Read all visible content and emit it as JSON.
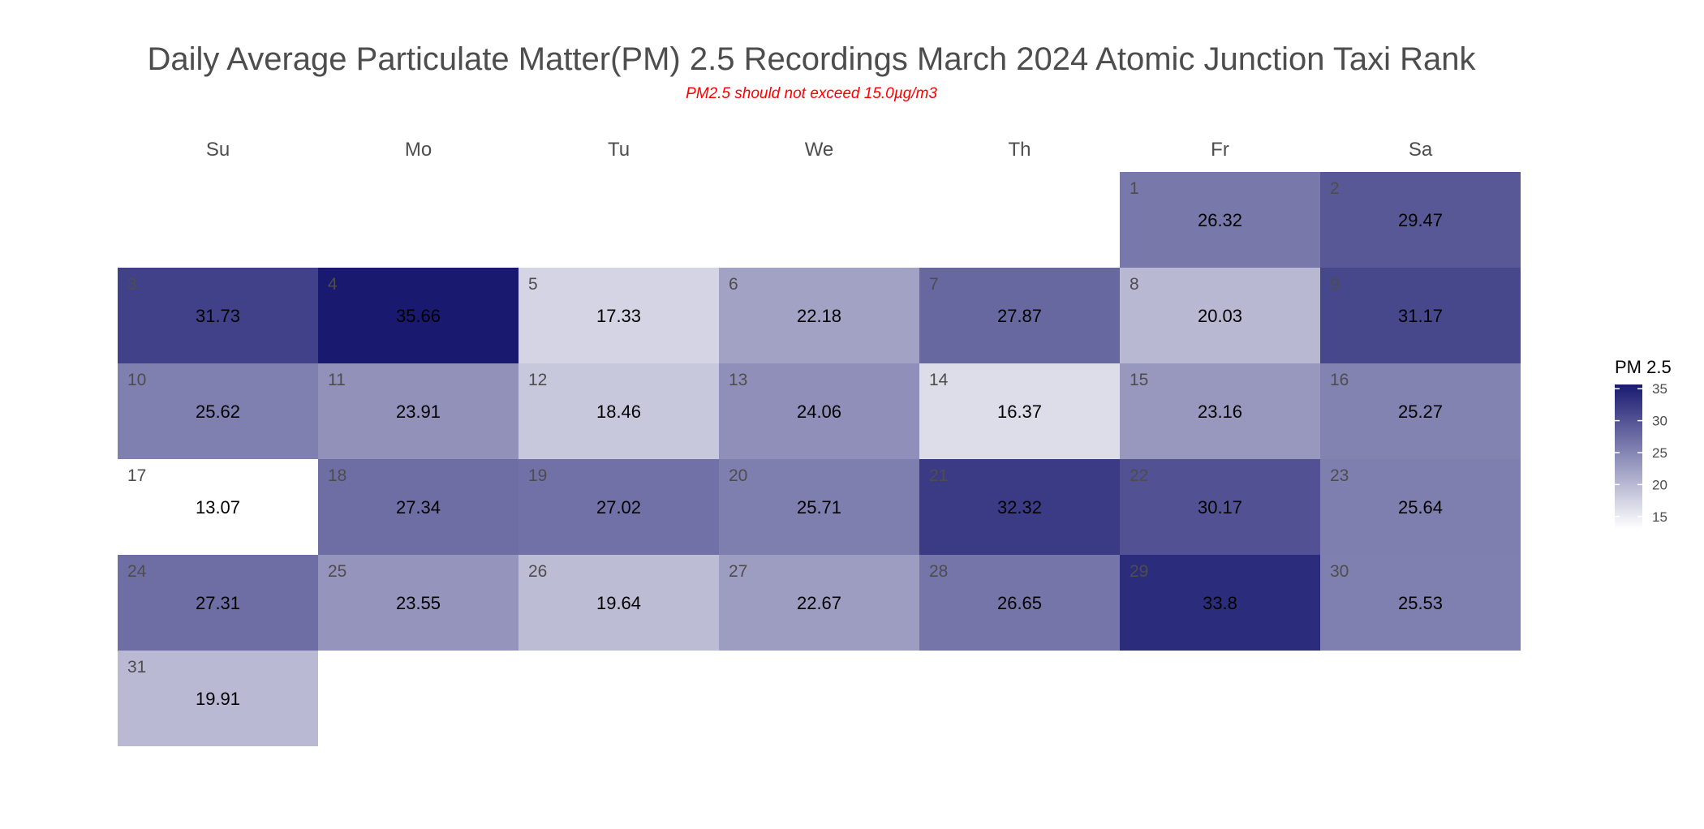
{
  "chart_data": {
    "type": "heatmap",
    "title": "Daily Average Particulate Matter(PM) 2.5 Recordings March 2024 Atomic Junction Taxi Rank",
    "subtitle": "PM2.5 should not exceed 15.0µg/m3",
    "weekdays": [
      "Su",
      "Mo",
      "Tu",
      "We",
      "Th",
      "Fr",
      "Sa"
    ],
    "first_weekday_index": 5,
    "days": [
      {
        "date": 1,
        "value": 26.32
      },
      {
        "date": 2,
        "value": 29.47
      },
      {
        "date": 3,
        "value": 31.73
      },
      {
        "date": 4,
        "value": 35.66
      },
      {
        "date": 5,
        "value": 17.33
      },
      {
        "date": 6,
        "value": 22.18
      },
      {
        "date": 7,
        "value": 27.87
      },
      {
        "date": 8,
        "value": 20.03
      },
      {
        "date": 9,
        "value": 31.17
      },
      {
        "date": 10,
        "value": 25.62
      },
      {
        "date": 11,
        "value": 23.91
      },
      {
        "date": 12,
        "value": 18.46
      },
      {
        "date": 13,
        "value": 24.06
      },
      {
        "date": 14,
        "value": 16.37
      },
      {
        "date": 15,
        "value": 23.16
      },
      {
        "date": 16,
        "value": 25.27
      },
      {
        "date": 17,
        "value": 13.07
      },
      {
        "date": 18,
        "value": 27.34
      },
      {
        "date": 19,
        "value": 27.02
      },
      {
        "date": 20,
        "value": 25.71
      },
      {
        "date": 21,
        "value": 32.32
      },
      {
        "date": 22,
        "value": 30.17
      },
      {
        "date": 23,
        "value": 25.64
      },
      {
        "date": 24,
        "value": 27.31
      },
      {
        "date": 25,
        "value": 23.55
      },
      {
        "date": 26,
        "value": 19.64
      },
      {
        "date": 27,
        "value": 22.67
      },
      {
        "date": 28,
        "value": 26.65
      },
      {
        "date": 29,
        "value": 33.8
      },
      {
        "date": 30,
        "value": 25.53
      },
      {
        "date": 31,
        "value": 19.91
      }
    ],
    "legend": {
      "title": "PM 2.5",
      "ticks": [
        15,
        20,
        25,
        30,
        35
      ]
    },
    "color_scale": {
      "low_value": 13.07,
      "high_value": 35.66,
      "low_color": "#ffffff",
      "high_color": "#191970"
    },
    "subtitle_color": "#ff0000"
  }
}
